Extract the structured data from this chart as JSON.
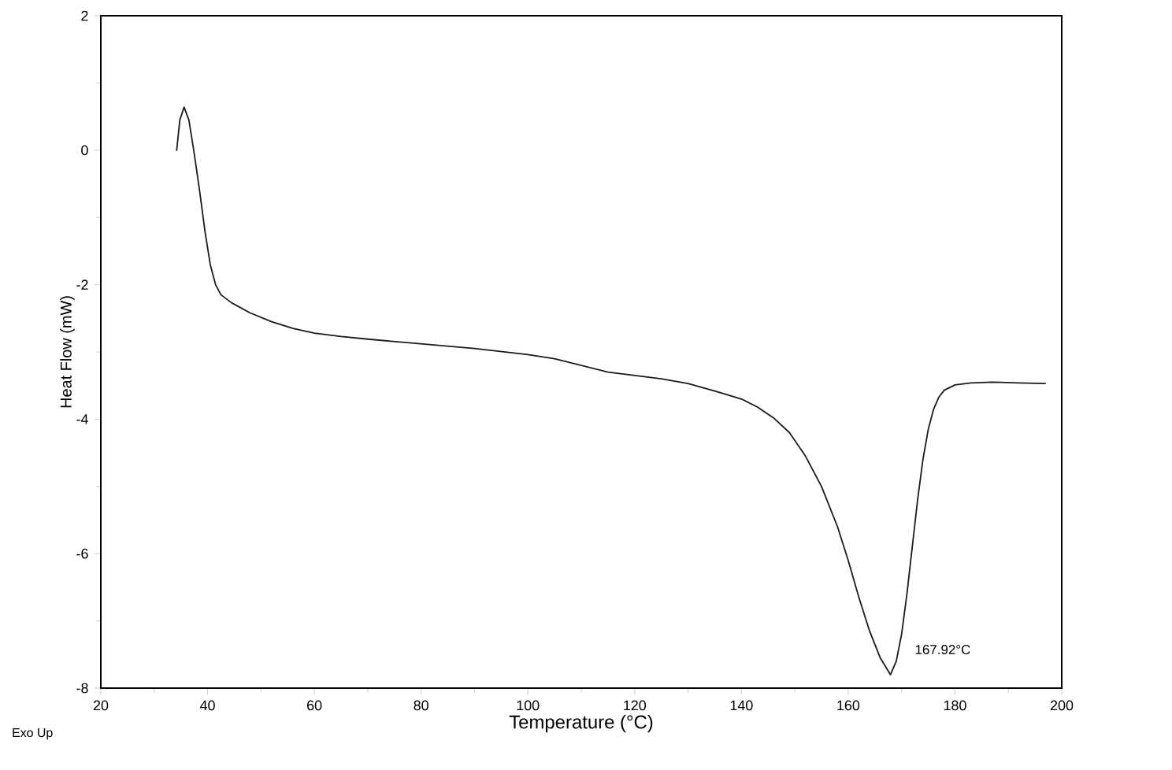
{
  "chart_data": {
    "type": "line",
    "xlabel": "Temperature (°C)",
    "ylabel": "Heat Flow (mW)",
    "x": [
      34.2,
      34.8,
      35.6,
      36.5,
      37.5,
      38.5,
      39.5,
      40.5,
      41.5,
      42.5,
      44.5,
      48,
      52,
      56,
      60,
      65,
      70,
      80,
      90,
      100,
      105,
      110,
      115,
      120,
      125,
      130,
      135,
      140,
      143,
      146,
      149,
      152,
      155,
      158,
      160,
      162,
      164,
      166,
      167.92,
      169,
      170,
      171,
      172,
      173,
      174,
      175,
      176,
      177,
      178,
      180,
      183,
      187,
      192,
      197
    ],
    "series": [
      {
        "color": "#1a1a1a",
        "values": [
          -0.01,
          0.45,
          0.64,
          0.45,
          -0.05,
          -0.6,
          -1.2,
          -1.7,
          -2.0,
          -2.15,
          -2.27,
          -2.42,
          -2.55,
          -2.65,
          -2.72,
          -2.77,
          -2.81,
          -2.88,
          -2.95,
          -3.04,
          -3.1,
          -3.2,
          -3.3,
          -3.35,
          -3.4,
          -3.47,
          -3.58,
          -3.7,
          -3.82,
          -3.98,
          -4.2,
          -4.55,
          -5.0,
          -5.6,
          -6.1,
          -6.65,
          -7.15,
          -7.55,
          -7.8,
          -7.6,
          -7.2,
          -6.6,
          -5.9,
          -5.2,
          -4.6,
          -4.15,
          -3.85,
          -3.67,
          -3.57,
          -3.49,
          -3.46,
          -3.45,
          -3.46,
          -3.47
        ]
      }
    ],
    "xlim": [
      20,
      200
    ],
    "ylim": [
      -8,
      2
    ],
    "xticks": [
      20,
      40,
      60,
      80,
      100,
      120,
      140,
      160,
      180,
      200
    ],
    "yticks": [
      -8,
      -6,
      -4,
      -2,
      0,
      2
    ],
    "grid": false,
    "marker": "none",
    "annotations": [
      {
        "text": "167.92°C",
        "x": 167.92,
        "y": -7.8
      },
      "Exo Up"
    ]
  }
}
